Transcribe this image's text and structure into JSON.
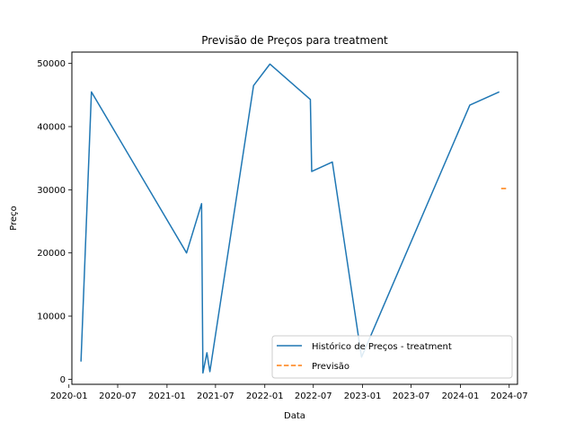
{
  "chart_data": {
    "type": "line",
    "title": "Previsão de Preços para treatment",
    "xlabel": "Data",
    "ylabel": "Preço",
    "ylim": [
      -800,
      51800
    ],
    "xlim": [
      "2020-01-12",
      "2024-08-01"
    ],
    "grid": false,
    "legend_position": "lower-right",
    "x_ticks": [
      "2020-01",
      "2020-07",
      "2021-01",
      "2021-07",
      "2022-01",
      "2022-07",
      "2023-01",
      "2023-07",
      "2024-01",
      "2024-07"
    ],
    "y_ticks": [
      0,
      10000,
      20000,
      30000,
      40000,
      50000
    ],
    "series": [
      {
        "name": "Histórico de Preços - treatment",
        "color": "#1f77b4",
        "style": "solid",
        "points": [
          {
            "x": "2020-02-15",
            "y": 2800
          },
          {
            "x": "2020-03-25",
            "y": 45500
          },
          {
            "x": "2021-03-15",
            "y": 20000
          },
          {
            "x": "2021-05-10",
            "y": 27800
          },
          {
            "x": "2021-05-15",
            "y": 1000
          },
          {
            "x": "2021-05-30",
            "y": 4200
          },
          {
            "x": "2021-06-10",
            "y": 1200
          },
          {
            "x": "2021-11-20",
            "y": 46500
          },
          {
            "x": "2022-01-20",
            "y": 49900
          },
          {
            "x": "2022-06-20",
            "y": 44300
          },
          {
            "x": "2022-06-25",
            "y": 32900
          },
          {
            "x": "2022-09-10",
            "y": 34400
          },
          {
            "x": "2022-12-28",
            "y": 3500
          },
          {
            "x": "2024-02-05",
            "y": 43400
          },
          {
            "x": "2024-05-25",
            "y": 45500
          }
        ]
      },
      {
        "name": "Previsão",
        "color": "#ff7f0e",
        "style": "dashed",
        "points": [
          {
            "x": "2024-06-01",
            "y": 30200
          },
          {
            "x": "2024-06-24",
            "y": 30200
          }
        ]
      }
    ]
  }
}
